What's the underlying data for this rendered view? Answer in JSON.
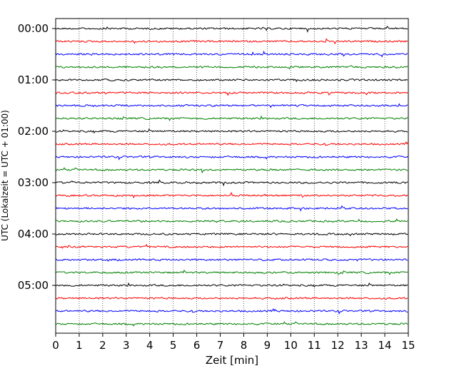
{
  "chart_data": {
    "type": "line",
    "xlabel": "Zeit  [min]",
    "ylabel": "UTC (Lokalzeit = UTC + 01:00)",
    "xlim": [
      0,
      15
    ],
    "x_ticks": [
      "0",
      "1",
      "2",
      "3",
      "4",
      "5",
      "6",
      "7",
      "8",
      "9",
      "10",
      "11",
      "12",
      "13",
      "14",
      "15"
    ],
    "y_tick_labels": [
      "00:00",
      "01:00",
      "02:00",
      "03:00",
      "04:00",
      "05:00"
    ],
    "y_tick_rows": [
      0,
      4,
      8,
      12,
      16,
      20
    ],
    "row_count": 24,
    "row_interval_minutes": 15,
    "trace_colors": [
      "#000000",
      "#ff0000",
      "#0000ff",
      "#008000"
    ],
    "grid": "vertical dotted",
    "series": [
      {
        "label": "00:00",
        "values": [
          0,
          0
        ]
      },
      {
        "label": "00:15",
        "values": [
          0,
          0
        ]
      },
      {
        "label": "00:30",
        "values": [
          0,
          0
        ]
      },
      {
        "label": "00:45",
        "values": [
          0,
          0
        ]
      },
      {
        "label": "01:00",
        "values": [
          0,
          0
        ]
      },
      {
        "label": "01:15",
        "values": [
          0,
          0
        ]
      },
      {
        "label": "01:30",
        "values": [
          0,
          0
        ]
      },
      {
        "label": "01:45",
        "values": [
          0,
          0
        ]
      },
      {
        "label": "02:00",
        "values": [
          0,
          0
        ]
      },
      {
        "label": "02:15",
        "values": [
          0,
          0
        ]
      },
      {
        "label": "02:30",
        "values": [
          0,
          0
        ]
      },
      {
        "label": "02:45",
        "values": [
          0,
          0
        ]
      },
      {
        "label": "03:00",
        "values": [
          0,
          0
        ]
      },
      {
        "label": "03:15",
        "values": [
          0,
          0
        ]
      },
      {
        "label": "03:30",
        "values": [
          0,
          0
        ]
      },
      {
        "label": "03:45",
        "values": [
          0,
          0
        ]
      },
      {
        "label": "04:00",
        "values": [
          0,
          0
        ]
      },
      {
        "label": "04:15",
        "values": [
          0,
          0
        ]
      },
      {
        "label": "04:30",
        "values": [
          0,
          0
        ]
      },
      {
        "label": "04:45",
        "values": [
          0,
          0
        ]
      },
      {
        "label": "05:00",
        "values": [
          0,
          0
        ]
      },
      {
        "label": "05:15",
        "values": [
          0,
          0
        ]
      },
      {
        "label": "05:30",
        "values": [
          0,
          0
        ]
      },
      {
        "label": "05:45",
        "values": [
          0,
          0
        ]
      }
    ]
  }
}
